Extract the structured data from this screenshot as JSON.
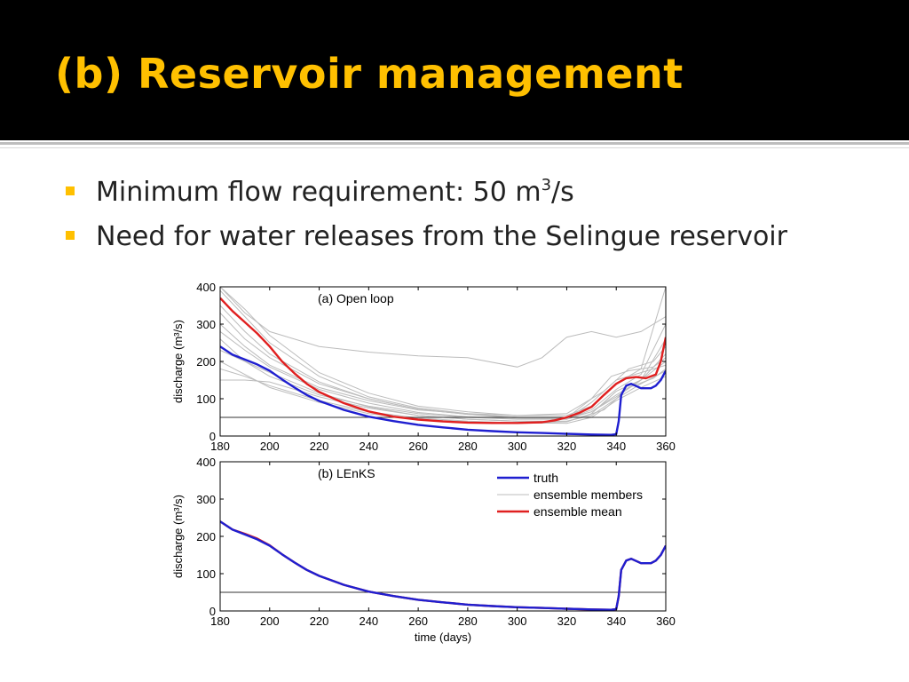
{
  "slide": {
    "title": "(b) Reservoir management",
    "bullets": [
      {
        "text_before": "Minimum flow requirement: 50 m",
        "superscript": "3",
        "text_after": "/s"
      },
      {
        "text_before": "Need for water releases from the Selingue reservoir",
        "superscript": "",
        "text_after": ""
      }
    ],
    "accent_color": "#ffc000",
    "title_bar_color": "#000000"
  },
  "chart_data": [
    {
      "type": "line",
      "panel_label": "(a) Open loop",
      "xlabel": "",
      "ylabel": "discharge (m³/s)",
      "xlim": [
        180,
        360
      ],
      "ylim": [
        0,
        400
      ],
      "xticks": [
        180,
        200,
        220,
        240,
        260,
        280,
        300,
        320,
        340,
        360
      ],
      "yticks": [
        0,
        100,
        200,
        300,
        400
      ],
      "threshold": 50,
      "series": [
        {
          "name": "truth",
          "color": "#1f1fd0",
          "x": [
            180,
            185,
            190,
            195,
            200,
            205,
            210,
            215,
            220,
            230,
            240,
            250,
            260,
            270,
            280,
            290,
            300,
            310,
            320,
            330,
            338,
            340,
            341,
            342,
            344,
            346,
            350,
            354,
            356,
            358,
            360
          ],
          "y": [
            240,
            218,
            205,
            192,
            175,
            152,
            130,
            110,
            94,
            70,
            52,
            40,
            30,
            23,
            17,
            13,
            10,
            8,
            6,
            4,
            3,
            5,
            40,
            110,
            135,
            140,
            128,
            128,
            135,
            150,
            175
          ]
        },
        {
          "name": "ensemble mean",
          "color": "#e02020",
          "x": [
            180,
            185,
            190,
            195,
            200,
            205,
            210,
            215,
            220,
            230,
            240,
            250,
            260,
            270,
            280,
            290,
            300,
            310,
            315,
            320,
            325,
            330,
            335,
            340,
            344,
            348,
            352,
            356,
            358,
            360
          ],
          "y": [
            370,
            335,
            305,
            275,
            240,
            200,
            168,
            140,
            118,
            88,
            66,
            52,
            44,
            39,
            36,
            35,
            35,
            37,
            42,
            50,
            62,
            78,
            110,
            140,
            155,
            158,
            155,
            165,
            200,
            265
          ]
        },
        {
          "name": "ensemble members",
          "color": "#bcbcbc",
          "members": [
            {
              "x": [
                180,
                190,
                200,
                220,
                240,
                260,
                280,
                300,
                320,
                330,
                340,
                350,
                360
              ],
              "y": [
                150,
                150,
                145,
                105,
                75,
                55,
                45,
                40,
                38,
                60,
                120,
                150,
                200
              ]
            },
            {
              "x": [
                180,
                190,
                200,
                220,
                240,
                260,
                280,
                300,
                320,
                335,
                345,
                355,
                360
              ],
              "y": [
                300,
                240,
                190,
                130,
                95,
                70,
                60,
                55,
                60,
                120,
                180,
                200,
                240
              ]
            },
            {
              "x": [
                180,
                190,
                200,
                220,
                240,
                260,
                280,
                300,
                310,
                320,
                330,
                340,
                350,
                360
              ],
              "y": [
                400,
                330,
                280,
                240,
                225,
                215,
                210,
                185,
                210,
                265,
                280,
                265,
                280,
                320
              ]
            },
            {
              "x": [
                180,
                190,
                200,
                220,
                240,
                260,
                280,
                300,
                320,
                330,
                340,
                350,
                360
              ],
              "y": [
                260,
                200,
                160,
                110,
                80,
                60,
                50,
                45,
                45,
                90,
                150,
                170,
                190
              ]
            },
            {
              "x": [
                180,
                190,
                200,
                220,
                240,
                260,
                280,
                300,
                320,
                335,
                345,
                355,
                360
              ],
              "y": [
                200,
                165,
                130,
                90,
                60,
                45,
                38,
                35,
                38,
                70,
                130,
                155,
                180
              ]
            },
            {
              "x": [
                180,
                190,
                200,
                220,
                240,
                260,
                280,
                300,
                320,
                330,
                340,
                350,
                360
              ],
              "y": [
                400,
                340,
                270,
                170,
                115,
                80,
                65,
                55,
                55,
                80,
                140,
                180,
                400
              ]
            },
            {
              "x": [
                180,
                190,
                200,
                220,
                240,
                260,
                280,
                300,
                320,
                330,
                340,
                350,
                360
              ],
              "y": [
                330,
                260,
                210,
                140,
                100,
                72,
                58,
                50,
                48,
                65,
                110,
                150,
                220
              ]
            },
            {
              "x": [
                180,
                190,
                200,
                220,
                240,
                260,
                280,
                300,
                320,
                330,
                340,
                350,
                360
              ],
              "y": [
                180,
                160,
                135,
                95,
                65,
                48,
                40,
                35,
                34,
                50,
                95,
                130,
                160
              ]
            },
            {
              "x": [
                180,
                190,
                200,
                220,
                240,
                260,
                280,
                300,
                320,
                330,
                340,
                350,
                360
              ],
              "y": [
                390,
                320,
                250,
                160,
                105,
                75,
                60,
                50,
                46,
                70,
                125,
                165,
                300
              ]
            },
            {
              "x": [
                180,
                190,
                200,
                220,
                240,
                260,
                280,
                300,
                320,
                330,
                340,
                350,
                360
              ],
              "y": [
                230,
                200,
                170,
                115,
                78,
                55,
                45,
                40,
                40,
                55,
                100,
                140,
                175
              ]
            },
            {
              "x": [
                180,
                190,
                200,
                220,
                240,
                260,
                280,
                300,
                320,
                330,
                338,
                345,
                355,
                360
              ],
              "y": [
                280,
                230,
                185,
                125,
                88,
                63,
                52,
                46,
                48,
                100,
                160,
                175,
                185,
                210
              ]
            },
            {
              "x": [
                180,
                190,
                200,
                220,
                240,
                260,
                280,
                300,
                320,
                330,
                340,
                350,
                360
              ],
              "y": [
                350,
                280,
                220,
                145,
                100,
                72,
                58,
                48,
                45,
                65,
                105,
                150,
                260
              ]
            }
          ]
        }
      ]
    },
    {
      "type": "line",
      "panel_label": "(b) LEnKS",
      "xlabel": "time (days)",
      "ylabel": "discharge (m³/s)",
      "xlim": [
        180,
        360
      ],
      "ylim": [
        0,
        400
      ],
      "xticks": [
        180,
        200,
        220,
        240,
        260,
        280,
        300,
        320,
        340,
        360
      ],
      "yticks": [
        0,
        100,
        200,
        300,
        400
      ],
      "threshold": 50,
      "legend": {
        "placement": "top-right",
        "entries": [
          "truth",
          "ensemble members",
          "ensemble mean"
        ]
      },
      "series": [
        {
          "name": "truth",
          "color": "#1f1fd0",
          "x": [
            180,
            185,
            190,
            195,
            200,
            205,
            210,
            215,
            220,
            230,
            240,
            250,
            260,
            270,
            280,
            290,
            300,
            310,
            320,
            330,
            338,
            340,
            341,
            342,
            344,
            346,
            350,
            354,
            356,
            358,
            360
          ],
          "y": [
            240,
            218,
            205,
            192,
            175,
            152,
            130,
            110,
            94,
            70,
            52,
            40,
            30,
            23,
            17,
            13,
            10,
            8,
            6,
            4,
            3,
            5,
            40,
            110,
            135,
            140,
            128,
            128,
            135,
            150,
            175
          ]
        },
        {
          "name": "ensemble mean",
          "color": "#e02020",
          "x": [
            180,
            185,
            190,
            195,
            200,
            205,
            210,
            215,
            220,
            230,
            240,
            250,
            260,
            270,
            280,
            290,
            300,
            310,
            320,
            330,
            338,
            340,
            341,
            342,
            344,
            346,
            350,
            354,
            356,
            358,
            360
          ],
          "y": [
            240,
            218,
            207,
            194,
            176,
            152,
            130,
            110,
            94,
            70,
            52,
            40,
            30,
            23,
            17,
            13,
            10,
            8,
            6,
            4,
            3,
            5,
            40,
            110,
            135,
            140,
            128,
            128,
            135,
            150,
            175
          ]
        },
        {
          "name": "ensemble members",
          "color": "#bcbcbc",
          "members": []
        }
      ]
    }
  ]
}
